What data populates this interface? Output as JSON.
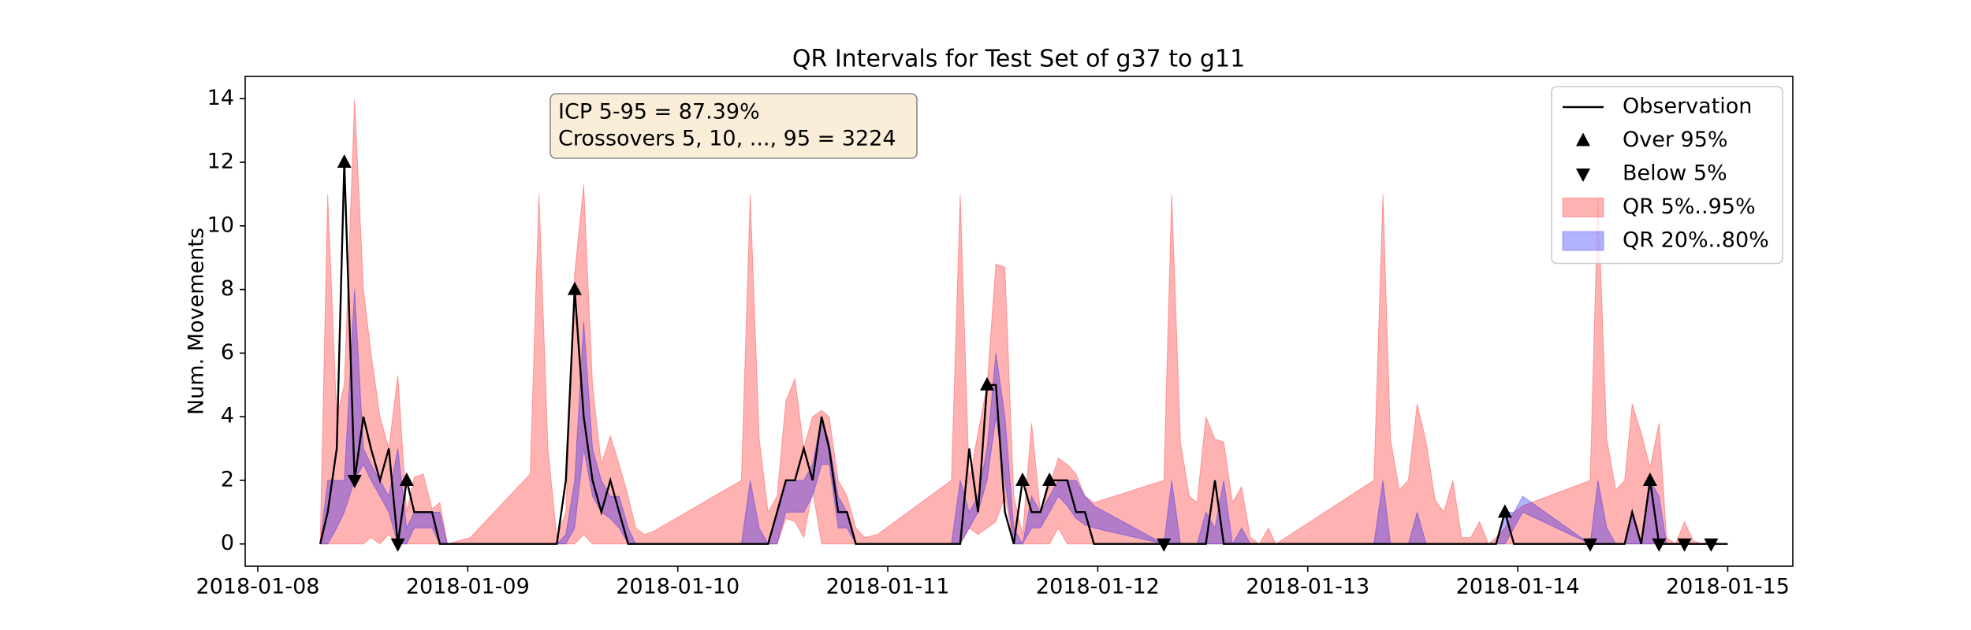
{
  "chart_data": {
    "type": "line",
    "title": "QR Intervals for Test Set of g37 to g11",
    "ylabel": "Num. Movements",
    "xlim": [
      -0.06,
      7.31
    ],
    "ylim": [
      -0.7,
      14.7
    ],
    "xticks": [
      {
        "value": 0,
        "label": "2018-01-08"
      },
      {
        "value": 1,
        "label": "2018-01-09"
      },
      {
        "value": 2,
        "label": "2018-01-10"
      },
      {
        "value": 3,
        "label": "2018-01-11"
      },
      {
        "value": 4,
        "label": "2018-01-12"
      },
      {
        "value": 5,
        "label": "2018-01-13"
      },
      {
        "value": 6,
        "label": "2018-01-14"
      },
      {
        "value": 7,
        "label": "2018-01-15"
      }
    ],
    "yticks": [
      0,
      2,
      4,
      6,
      8,
      10,
      12,
      14
    ],
    "grid": false,
    "legend": "upper right",
    "annotations": [
      "ICP 5-95 = 87.39%",
      "Crossovers 5, 10, ..., 95 = 3224"
    ],
    "x": [
      0.297,
      0.333,
      0.376,
      0.412,
      0.461,
      0.503,
      0.539,
      0.582,
      0.624,
      0.667,
      0.709,
      0.745,
      0.788,
      0.83,
      0.867,
      0.903,
      1.012,
      1.297,
      1.339,
      1.382,
      1.424,
      1.467,
      1.509,
      1.552,
      1.594,
      1.636,
      1.679,
      1.721,
      1.764,
      1.8,
      1.842,
      1.885,
      2.303,
      2.345,
      2.388,
      2.43,
      2.473,
      2.515,
      2.558,
      2.6,
      2.642,
      2.685,
      2.721,
      2.764,
      2.806,
      2.848,
      2.891,
      2.952,
      3.303,
      3.345,
      3.388,
      3.43,
      3.473,
      3.515,
      3.558,
      3.6,
      3.642,
      3.685,
      3.727,
      3.77,
      3.812,
      3.855,
      3.897,
      3.939,
      3.982,
      4.315,
      4.352,
      4.394,
      4.436,
      4.473,
      4.515,
      4.558,
      4.6,
      4.642,
      4.685,
      4.727,
      4.77,
      4.812,
      4.848,
      5.315,
      5.358,
      5.394,
      5.436,
      5.479,
      5.521,
      5.564,
      5.606,
      5.648,
      5.691,
      5.733,
      5.776,
      5.818,
      5.861,
      5.897,
      5.939,
      5.982,
      6.024,
      6.345,
      6.382,
      6.424,
      6.467,
      6.509,
      6.545,
      6.588,
      6.63,
      6.673,
      6.709,
      6.752,
      6.794,
      6.836,
      6.879,
      6.921,
      6.964,
      7.0
    ],
    "series": [
      {
        "name": "QR 5%..95%",
        "type": "band",
        "color": "#ff0000",
        "low": [
          0,
          0,
          0,
          0,
          0,
          0,
          0.2,
          0,
          0.3,
          0,
          0,
          0,
          0,
          0,
          0,
          0,
          0,
          0,
          0,
          0,
          0,
          0,
          0,
          0.3,
          0,
          0,
          0,
          0,
          0,
          0,
          0,
          0,
          0,
          0,
          0,
          0,
          0,
          0.8,
          0.7,
          0.2,
          1.7,
          0,
          0,
          0,
          0,
          0,
          0,
          0,
          0,
          0,
          0.5,
          0.3,
          0.5,
          0.7,
          1.5,
          0,
          0,
          0,
          0,
          0,
          0.5,
          0,
          0,
          0,
          0,
          0,
          0,
          0,
          0,
          0,
          0,
          0,
          0,
          0,
          0,
          0,
          0,
          0,
          0,
          0,
          0,
          0,
          0,
          0,
          0,
          0,
          0,
          0,
          0,
          0,
          0,
          0,
          0,
          0,
          0,
          0,
          0,
          0,
          0,
          0,
          0,
          0,
          0,
          0,
          0,
          0,
          0,
          0,
          0,
          0,
          0,
          0,
          0,
          0
        ],
        "high": [
          0,
          11,
          4,
          5,
          14,
          8,
          6,
          4,
          3,
          5.3,
          1,
          2.1,
          2.2,
          1.1,
          1.3,
          0,
          0.2,
          2.2,
          11,
          3,
          0.2,
          1,
          8.5,
          11.3,
          5,
          2.5,
          3.4,
          2.5,
          1.5,
          0.5,
          0.3,
          0.4,
          2,
          11,
          3.3,
          1,
          1.5,
          4.5,
          5.2,
          3,
          4,
          4.2,
          4,
          2,
          1.5,
          0.5,
          0.2,
          0.3,
          2,
          11,
          2,
          3.5,
          5,
          8.8,
          8.7,
          1.5,
          0.3,
          3.8,
          1,
          1.8,
          2.7,
          2.5,
          2.2,
          1.5,
          1.3,
          2,
          11,
          3.2,
          1.5,
          1.3,
          4,
          3.3,
          3.2,
          1.3,
          1.8,
          0.2,
          0,
          0.5,
          0,
          2,
          11,
          3.3,
          1.7,
          2,
          4.4,
          3.2,
          1.4,
          1,
          2,
          0.2,
          0.2,
          0.7,
          0,
          0.2,
          0.5,
          1,
          1.2,
          2,
          11,
          3.3,
          1.7,
          2,
          4.4,
          3.5,
          2.4,
          3.8,
          0.2,
          0,
          0.7,
          0.1,
          0,
          0.1,
          0,
          0
        ]
      },
      {
        "name": "QR 20%..80%",
        "type": "band",
        "color": "#0000ff",
        "low": [
          0,
          0,
          0.5,
          1,
          2,
          2.5,
          2,
          1.5,
          1,
          0,
          0,
          0.5,
          0.5,
          0.5,
          0,
          0,
          0,
          0,
          0,
          0,
          0,
          0,
          0.5,
          3,
          1.5,
          1,
          0.8,
          0.5,
          0,
          0,
          0,
          0,
          0,
          0,
          0,
          0,
          0,
          1,
          1,
          1,
          1.5,
          2.5,
          2.5,
          0.5,
          0.5,
          0,
          0,
          0,
          0,
          0,
          0.5,
          1,
          2,
          4,
          2,
          0,
          0,
          0.5,
          0.5,
          1,
          1.5,
          1.2,
          0.8,
          0.6,
          0.5,
          0,
          0,
          0,
          0,
          0,
          0,
          0,
          0,
          0,
          0,
          0,
          0,
          0,
          0,
          0,
          0,
          0,
          0,
          0,
          0,
          0,
          0,
          0,
          0,
          0,
          0,
          0,
          0,
          0,
          0,
          0.5,
          1,
          0,
          0,
          0,
          0,
          0,
          0,
          0,
          0,
          0,
          0,
          0,
          0,
          0,
          0,
          0,
          0,
          0
        ],
        "high": [
          0,
          2,
          2,
          2,
          8,
          3,
          2.5,
          2,
          1.5,
          3,
          0.5,
          1,
          1,
          1,
          1,
          0,
          0,
          0,
          0,
          0,
          0,
          0.3,
          2,
          7,
          3,
          2,
          1.5,
          1.5,
          0.5,
          0,
          0,
          0,
          0,
          2,
          0.5,
          0,
          1,
          2,
          2,
          2,
          2.5,
          4,
          3.2,
          1.5,
          1,
          0,
          0,
          0,
          0,
          2,
          1,
          1.5,
          3,
          6,
          4,
          0.5,
          0,
          1.5,
          1,
          1.5,
          2,
          2,
          2,
          1.5,
          1.2,
          0,
          2,
          0,
          0,
          0,
          1,
          0.5,
          2,
          0,
          0.5,
          0,
          0,
          0,
          0,
          0,
          2,
          0,
          0,
          0,
          1,
          0,
          0,
          0,
          0,
          0,
          0,
          0,
          0,
          0,
          1,
          1,
          1.5,
          0,
          2,
          0.5,
          0,
          0,
          1,
          0,
          2,
          1.5,
          0,
          0,
          0,
          0,
          0,
          0,
          0,
          0
        ]
      },
      {
        "name": "Observation",
        "type": "line",
        "color": "#000000",
        "values": [
          0,
          1,
          3,
          12,
          2,
          4,
          3,
          2,
          3,
          0,
          2,
          1,
          1,
          1,
          0,
          0,
          0,
          0,
          0,
          0,
          0,
          2,
          8,
          4,
          2,
          1,
          2,
          1,
          0,
          0,
          0,
          0,
          0,
          0,
          0,
          0,
          1,
          2,
          2,
          3,
          2,
          4,
          3,
          1,
          1,
          0,
          0,
          0,
          0,
          0,
          3,
          1,
          5,
          5,
          1,
          0,
          2,
          1,
          1,
          2,
          2,
          2,
          1,
          1,
          0,
          0,
          0,
          0,
          0,
          0,
          0,
          2,
          0,
          0,
          0,
          0,
          0,
          0,
          0,
          0,
          0,
          0,
          0,
          0,
          0,
          0,
          0,
          0,
          0,
          0,
          0,
          0,
          0,
          0,
          1,
          0,
          0,
          0,
          0,
          0,
          0,
          0,
          1,
          0,
          2,
          0,
          0,
          0,
          0,
          0,
          0,
          0,
          0,
          0
        ]
      },
      {
        "name": "Over 95%",
        "type": "scatter",
        "marker": "triangle-up",
        "color": "#000000",
        "x": [
          0.412,
          0.709,
          1.509,
          3.473,
          3.642,
          3.77,
          5.939,
          6.63
        ],
        "values": [
          12,
          2,
          8,
          5,
          2,
          2,
          1,
          2
        ]
      },
      {
        "name": "Below 5%",
        "type": "scatter",
        "marker": "triangle-down",
        "color": "#000000",
        "x": [
          0.461,
          0.667,
          4.315,
          6.345,
          6.673,
          6.794,
          6.921
        ],
        "values": [
          2,
          0,
          0,
          0,
          0,
          0,
          0
        ]
      }
    ]
  }
}
